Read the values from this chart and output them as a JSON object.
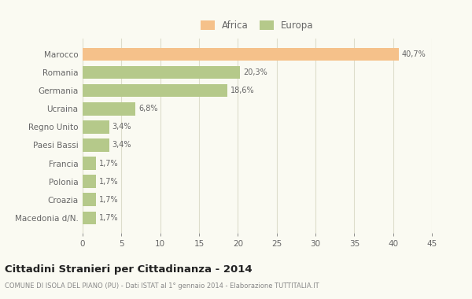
{
  "categories": [
    "Marocco",
    "Romania",
    "Germania",
    "Ucraina",
    "Regno Unito",
    "Paesi Bassi",
    "Francia",
    "Polonia",
    "Croazia",
    "Macedonia d/N."
  ],
  "values": [
    40.7,
    20.3,
    18.6,
    6.8,
    3.4,
    3.4,
    1.7,
    1.7,
    1.7,
    1.7
  ],
  "labels": [
    "40,7%",
    "20,3%",
    "18,6%",
    "6,8%",
    "3,4%",
    "3,4%",
    "1,7%",
    "1,7%",
    "1,7%",
    "1,7%"
  ],
  "colors": [
    "#f5c18a",
    "#b5c98a",
    "#b5c98a",
    "#b5c98a",
    "#b5c98a",
    "#b5c98a",
    "#b5c98a",
    "#b5c98a",
    "#b5c98a",
    "#b5c98a"
  ],
  "legend_labels": [
    "Africa",
    "Europa"
  ],
  "legend_colors": [
    "#f5c18a",
    "#b5c98a"
  ],
  "title": "Cittadini Stranieri per Cittadinanza - 2014",
  "subtitle": "COMUNE DI ISOLA DEL PIANO (PU) - Dati ISTAT al 1° gennaio 2014 - Elaborazione TUTTITALIA.IT",
  "xlim": [
    0,
    45
  ],
  "xticks": [
    0,
    5,
    10,
    15,
    20,
    25,
    30,
    35,
    40,
    45
  ],
  "background_color": "#fafaf2",
  "bar_height": 0.72,
  "grid_color": "#ddddcc",
  "text_color": "#666666",
  "title_color": "#222222",
  "subtitle_color": "#888888"
}
